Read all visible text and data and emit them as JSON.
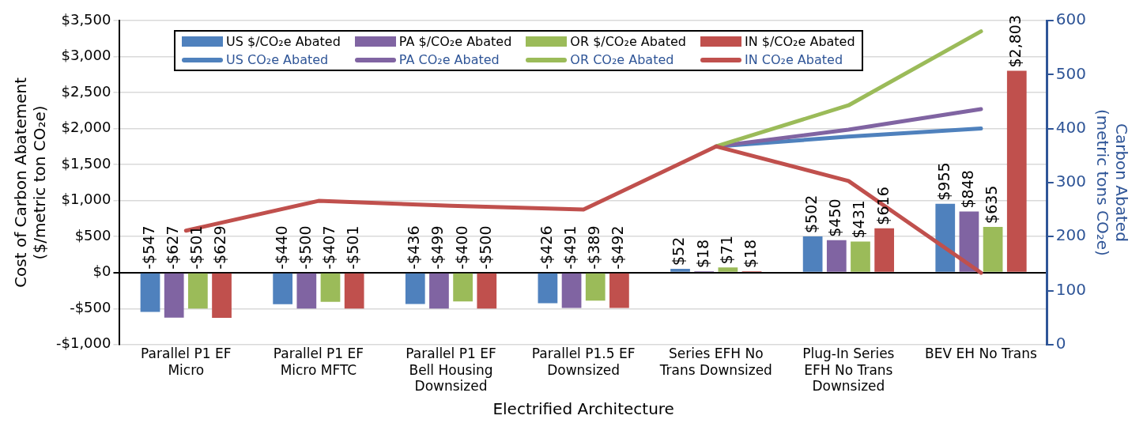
{
  "chart_data": {
    "type": "bar",
    "xlabel": "Electrified Architecture",
    "ylabel": "Cost of Carbon Abatement ($/metric ton CO₂e)",
    "y2label": "Carbon Abated (metric tons CO₂e)",
    "categories": [
      "Parallel P1 EF Micro",
      "Parallel P1 EF Micro MFTC",
      "Parallel P1 EF Bell Housing Downsized",
      "Parallel P1.5 EF Downsized",
      "Series EFH No Trans Downsized",
      "Plug-In Series EFH No Trans Downsized",
      "BEV EH No Trans"
    ],
    "series": [
      {
        "name": "US $/CO₂e Abated",
        "color": "#4f81bd",
        "values": [
          -547,
          -440,
          -436,
          -426,
          52,
          502,
          955
        ],
        "value_labels": [
          "-$547",
          "-$440",
          "-$436",
          "-$426",
          "$52",
          "$502",
          "$955"
        ]
      },
      {
        "name": "PA $/CO₂e Abated",
        "color": "#8064a2",
        "values": [
          -627,
          -500,
          -499,
          -491,
          18,
          450,
          848
        ],
        "value_labels": [
          "-$627",
          "-$500",
          "-$499",
          "-$491",
          "$18",
          "$450",
          "$848"
        ]
      },
      {
        "name": "OR $/CO₂e Abated",
        "color": "#9bbb59",
        "values": [
          -501,
          -407,
          -400,
          -389,
          71,
          431,
          635
        ],
        "value_labels": [
          "-$501",
          "-$407",
          "-$400",
          "-$389",
          "$71",
          "$431",
          "$635"
        ]
      },
      {
        "name": "IN $/CO₂e Abated",
        "color": "#c0504d",
        "values": [
          -629,
          -501,
          -500,
          -492,
          18,
          616,
          2803
        ],
        "value_labels": [
          "-$629",
          "-$501",
          "-$500",
          "-$492",
          "$18",
          "$616",
          "$2,803"
        ]
      },
      {
        "name": "US CO₂e Abated",
        "type": "line",
        "axis": "y2",
        "color": "#4f81bd",
        "values": [
          null,
          null,
          null,
          null,
          367,
          385,
          400
        ]
      },
      {
        "name": "PA CO₂e Abated",
        "type": "line",
        "axis": "y2",
        "color": "#8064a2",
        "values": [
          null,
          null,
          null,
          null,
          367,
          398,
          436
        ]
      },
      {
        "name": "OR CO₂e Abated",
        "type": "line",
        "axis": "y2",
        "color": "#9bbb59",
        "values": [
          null,
          null,
          null,
          null,
          367,
          443,
          580
        ]
      },
      {
        "name": "IN CO₂e Abated",
        "type": "line",
        "axis": "y2",
        "color": "#c0504d",
        "values": [
          211,
          266,
          257,
          250,
          367,
          303,
          133
        ]
      }
    ],
    "ylim": [
      -1000,
      3500
    ],
    "yticks": [
      {
        "value": -1000,
        "label": "-$1,000"
      },
      {
        "value": -500,
        "label": "-$500"
      },
      {
        "value": 0,
        "label": "$0"
      },
      {
        "value": 500,
        "label": "$500"
      },
      {
        "value": 1000,
        "label": "$1,000"
      },
      {
        "value": 1500,
        "label": "$1,500"
      },
      {
        "value": 2000,
        "label": "$2,000"
      },
      {
        "value": 2500,
        "label": "$2,500"
      },
      {
        "value": 3000,
        "label": "$3,000"
      },
      {
        "value": 3500,
        "label": "$3,500"
      }
    ],
    "y2lim": [
      0,
      600
    ],
    "y2ticks": [
      0,
      100,
      200,
      300,
      400,
      500,
      600
    ],
    "grid": "y",
    "legend": "top",
    "marker": "none",
    "line_style": "solid"
  }
}
